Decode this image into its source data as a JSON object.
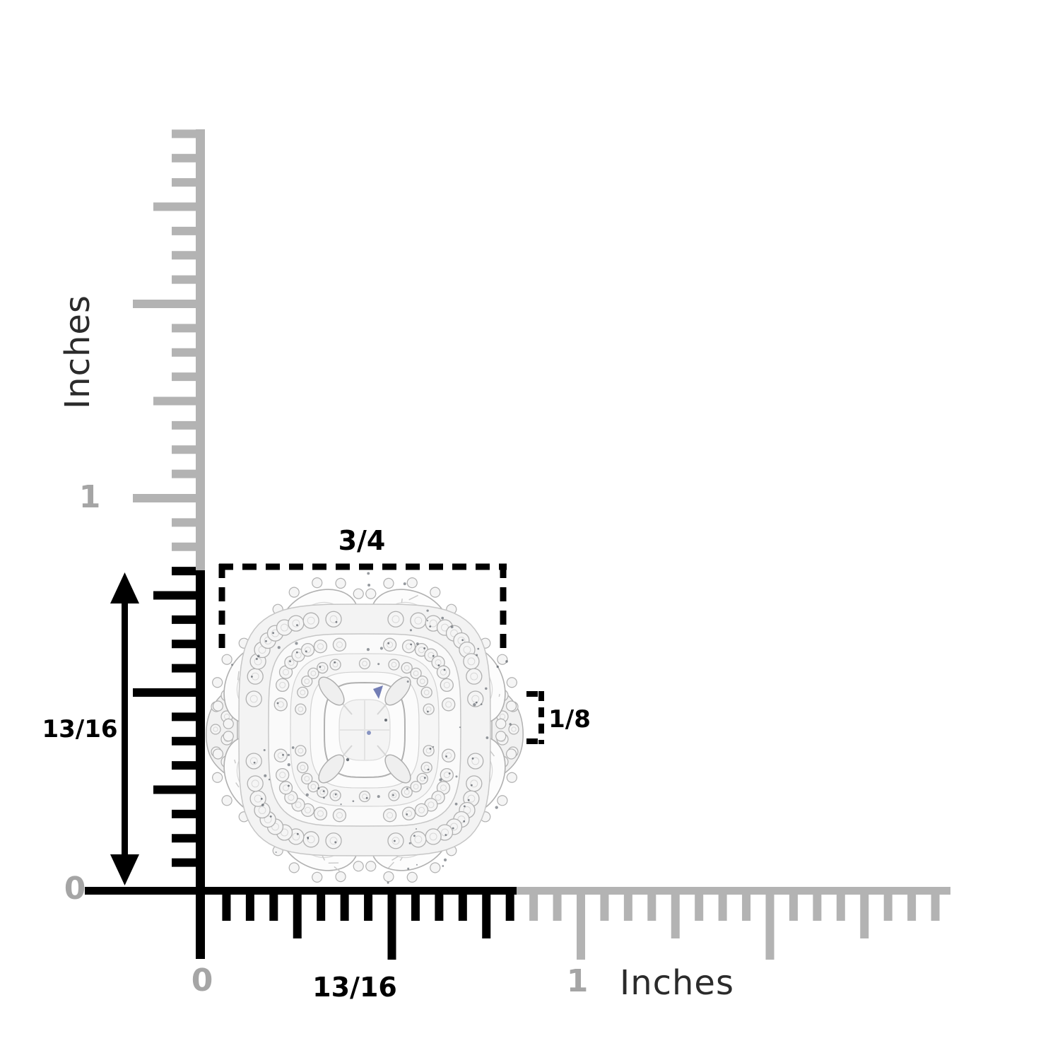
{
  "figure": {
    "subject": "diamond cluster halo ring with ruler measurement overlay",
    "background_color": "#ffffff"
  },
  "units": {
    "vertical_title": "Inches",
    "horizontal_title": "Inches"
  },
  "vertical_ruler": {
    "label_one": "1",
    "label_zero": "0"
  },
  "horizontal_ruler": {
    "label_zero": "0",
    "label_one": "1"
  },
  "measurements": {
    "width": "3/4",
    "height": "13/16",
    "band_width": "1/8",
    "bottom_width": "13/16",
    "unit": "Inches"
  },
  "colors": {
    "ink": "#000000",
    "ruler_gray": "#b3b3b3",
    "label_gray": "#a5a5a5",
    "text_dark": "#2b2b2b",
    "metal_stroke": "#b0b0b0",
    "metal_light": "#d8d8d8",
    "stone_fill": "#f5f5f5",
    "stone_bright": "#fcfcfc",
    "speck_dark": "#2e3640",
    "blue_accent": "#5a67a8"
  }
}
